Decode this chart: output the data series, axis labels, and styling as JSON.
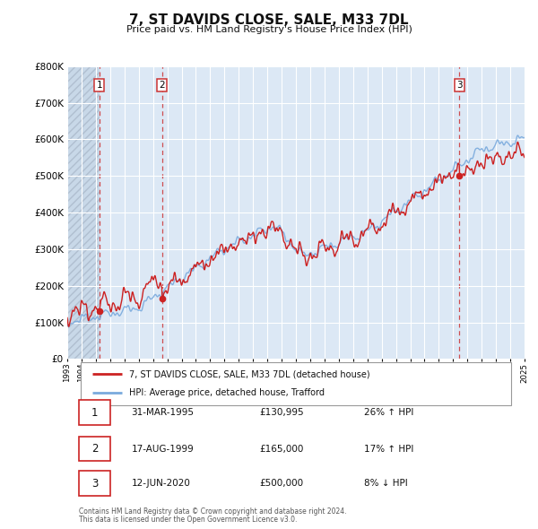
{
  "title": "7, ST DAVIDS CLOSE, SALE, M33 7DL",
  "subtitle": "Price paid vs. HM Land Registry's House Price Index (HPI)",
  "background_color": "#ffffff",
  "plot_bg_color": "#dce8f5",
  "hatch_color": "#b0bfd0",
  "grid_color": "#ffffff",
  "ylim": [
    0,
    800000
  ],
  "yticks": [
    0,
    100000,
    200000,
    300000,
    400000,
    500000,
    600000,
    700000,
    800000
  ],
  "ytick_labels": [
    "£0",
    "£100K",
    "£200K",
    "£300K",
    "£400K",
    "£500K",
    "£600K",
    "£700K",
    "£800K"
  ],
  "x_start_year": 1993,
  "x_end_year": 2025,
  "sale_color": "#cc2222",
  "hpi_color": "#7aaadd",
  "marker_color": "#cc2222",
  "vline_color": "#cc3333",
  "transactions": [
    {
      "label": "1",
      "date_num": 1995.25,
      "price": 130995,
      "hpi_pct": "26%",
      "hpi_dir": "↑",
      "date_str": "31-MAR-1995",
      "price_str": "£130,995"
    },
    {
      "label": "2",
      "date_num": 1999.62,
      "price": 165000,
      "hpi_pct": "17%",
      "hpi_dir": "↑",
      "date_str": "17-AUG-1999",
      "price_str": "£165,000"
    },
    {
      "label": "3",
      "date_num": 2020.45,
      "price": 500000,
      "hpi_pct": "8%",
      "hpi_dir": "↓",
      "date_str": "12-JUN-2020",
      "price_str": "£500,000"
    }
  ],
  "legend_sale_label": "7, ST DAVIDS CLOSE, SALE, M33 7DL (detached house)",
  "legend_hpi_label": "HPI: Average price, detached house, Trafford",
  "footer_line1": "Contains HM Land Registry data © Crown copyright and database right 2024.",
  "footer_line2": "This data is licensed under the Open Government Licence v3.0."
}
